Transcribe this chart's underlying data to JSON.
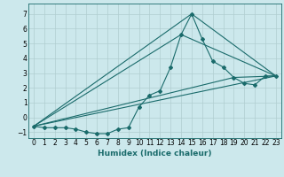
{
  "xlabel": "Humidex (Indice chaleur)",
  "ylabel": "",
  "bg_color": "#cce8ec",
  "grid_color": "#b0cdd0",
  "line_color": "#1a6b6b",
  "xlim": [
    -0.5,
    23.5
  ],
  "ylim": [
    -1.4,
    7.7
  ],
  "yticks": [
    -1,
    0,
    1,
    2,
    3,
    4,
    5,
    6,
    7
  ],
  "xticks": [
    0,
    1,
    2,
    3,
    4,
    5,
    6,
    7,
    8,
    9,
    10,
    11,
    12,
    13,
    14,
    15,
    16,
    17,
    18,
    19,
    20,
    21,
    22,
    23
  ],
  "xtick_labels": [
    "0",
    "1",
    "2",
    "3",
    "4",
    "5",
    "6",
    "7",
    "8",
    "9",
    "10",
    "11",
    "12",
    "13",
    "14",
    "15",
    "16",
    "17",
    "18",
    "19",
    "20",
    "21",
    "22",
    "23"
  ],
  "lines": [
    {
      "x": [
        0,
        1,
        2,
        3,
        4,
        5,
        6,
        7,
        8,
        9,
        10,
        11,
        12,
        13,
        14,
        15,
        16,
        17,
        18,
        19,
        20,
        21,
        22,
        23
      ],
      "y": [
        -0.6,
        -0.7,
        -0.7,
        -0.7,
        -0.8,
        -1.0,
        -1.1,
        -1.1,
        -0.8,
        -0.7,
        0.7,
        1.5,
        1.8,
        3.4,
        5.6,
        7.0,
        5.3,
        3.8,
        3.4,
        2.7,
        2.3,
        2.2,
        2.8,
        2.8
      ],
      "marker": "D",
      "lw": 0.8
    },
    {
      "x": [
        0,
        23
      ],
      "y": [
        -0.6,
        2.8
      ],
      "marker": null,
      "lw": 0.8
    },
    {
      "x": [
        0,
        14,
        23
      ],
      "y": [
        -0.6,
        5.6,
        2.8
      ],
      "marker": null,
      "lw": 0.8
    },
    {
      "x": [
        0,
        15,
        23
      ],
      "y": [
        -0.6,
        7.0,
        2.8
      ],
      "marker": null,
      "lw": 0.8
    },
    {
      "x": [
        0,
        19,
        23
      ],
      "y": [
        -0.6,
        2.7,
        2.8
      ],
      "marker": null,
      "lw": 0.8
    }
  ]
}
